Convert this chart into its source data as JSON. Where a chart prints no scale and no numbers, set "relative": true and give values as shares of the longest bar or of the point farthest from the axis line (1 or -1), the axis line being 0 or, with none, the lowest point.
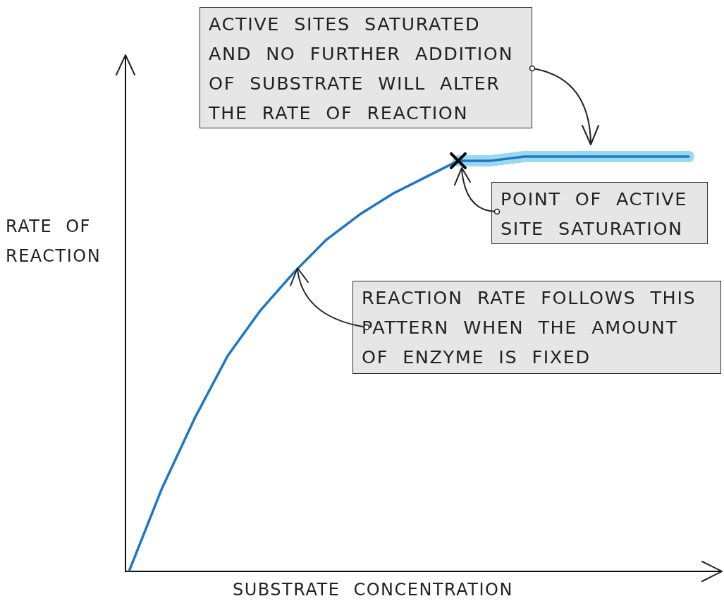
{
  "chart_data": {
    "type": "line",
    "relative": true,
    "xlabel": "SUBSTRATE CONCENTRATION",
    "ylabel": "RATE OF REACTION",
    "categories": [
      null,
      null,
      null,
      null,
      null,
      null,
      null,
      null,
      null,
      null,
      null,
      null,
      null,
      null,
      null,
      null,
      null,
      null
    ],
    "series": [
      {
        "color": "#9ad8f0",
        "values": [
          null,
          null,
          null,
          null,
          null,
          null,
          null,
          null,
          null,
          null,
          0.99,
          0.99,
          1,
          1,
          1,
          1,
          1,
          1
        ]
      },
      {
        "color": "#1f77c4",
        "values": [
          0,
          0.2,
          0.37,
          0.52,
          0.63,
          0.72,
          0.8,
          0.86,
          0.91,
          0.95,
          0.99,
          0.99,
          1,
          1,
          1,
          1,
          1,
          1
        ]
      }
    ],
    "annotations": [
      "ACTIVE SITES SATURATED AND NO FURTHER ADDITION OF SUBSTRATE WILL ALTER THE RATE OF REACTION",
      {
        "text": "POINT OF ACTIVE SITE SATURATION",
        "y": 0.99
      },
      "REACTION RATE FOLLOWS THIS PATTERN WHEN THE AMOUNT OF ENZYME IS FIXED"
    ]
  }
}
